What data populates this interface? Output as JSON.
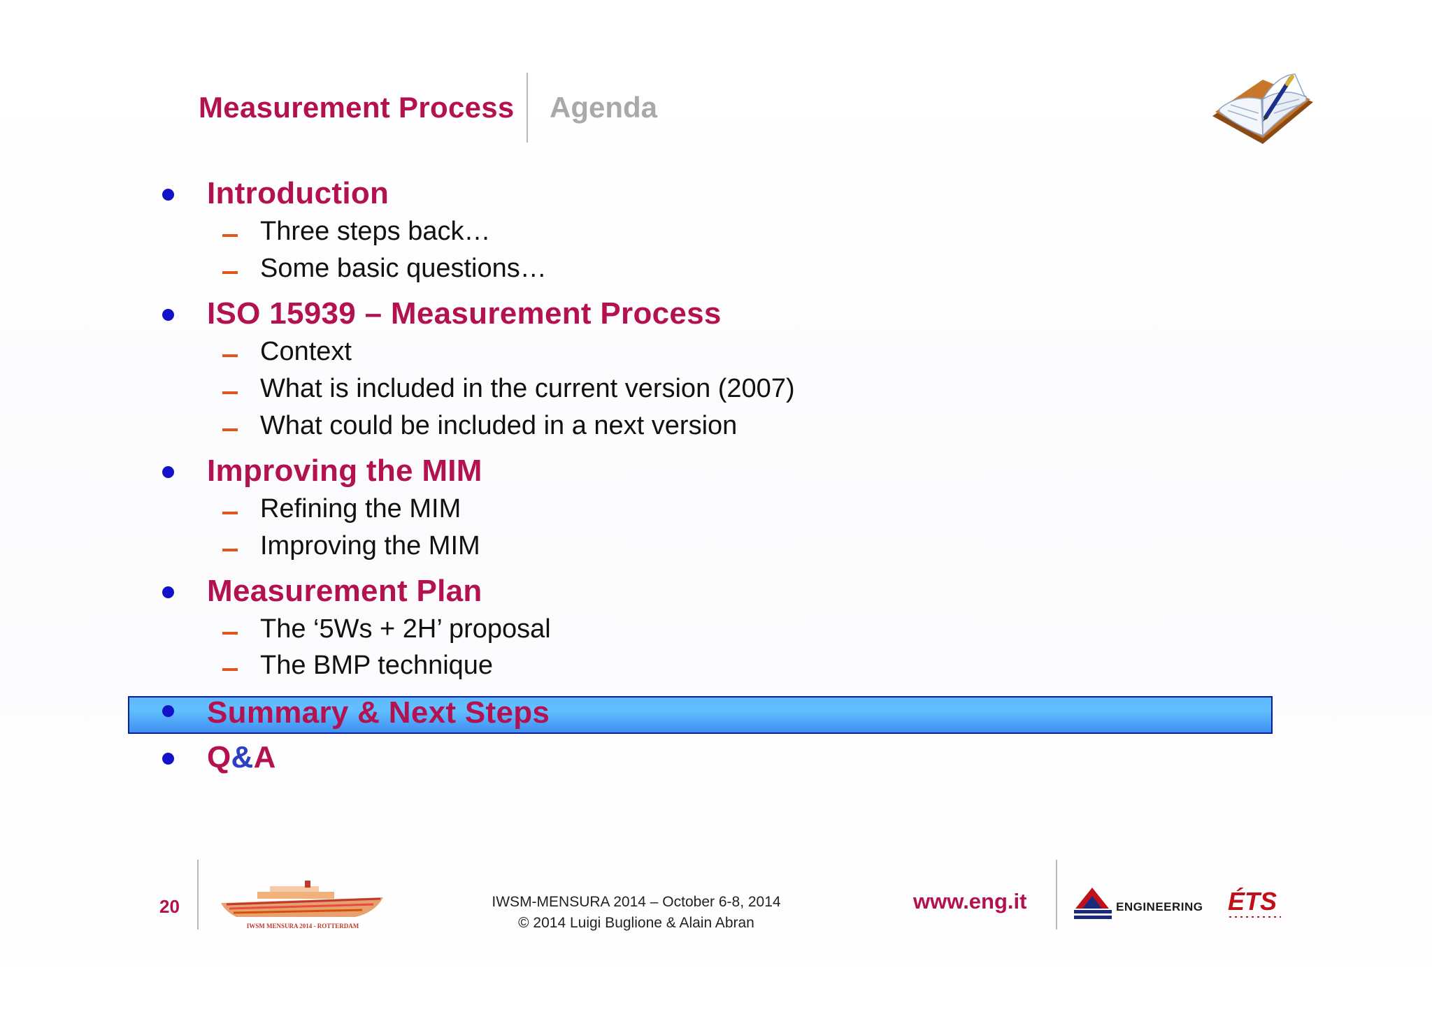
{
  "header": {
    "title": "Measurement Process",
    "subtitle": "Agenda",
    "book_icon": "open-book-pen-icon"
  },
  "agenda": [
    {
      "label": "Introduction",
      "children": [
        "Three steps back…",
        "Some basic questions…"
      ]
    },
    {
      "label": "ISO 15939 – Measurement Process",
      "children": [
        "Context",
        "What is included in the current version (2007)",
        "What could be included in a next version"
      ]
    },
    {
      "label": "Improving the MIM",
      "children": [
        "Refining the MIM",
        "Improving the MIM"
      ]
    },
    {
      "label": "Measurement Plan",
      "children": [
        "The ‘5Ws + 2H’ proposal",
        "The BMP technique"
      ]
    },
    {
      "label": "Summary & Next Steps",
      "children": [],
      "highlighted": true
    },
    {
      "label_q": "Q",
      "label_amp": "&",
      "label_a": "A",
      "children": []
    }
  ],
  "footer": {
    "page_number": "20",
    "ship_logo_text": "IWSM MENSURA 2014 - ROTTERDAM",
    "conference": "IWSM-MENSURA 2014 – October 6-8, 2014",
    "copyright": "© 2014 Luigi Buglione & Alain Abran",
    "url": "www.eng.it",
    "engineering_label": "ENGINEERING",
    "ets_label": "ÉTS"
  },
  "colors": {
    "accent": "#b3114f",
    "bullet": "#1212c8",
    "dash": "#e0561c",
    "highlight": "#5fb8ff",
    "highlight_border": "#0b1f9a"
  }
}
